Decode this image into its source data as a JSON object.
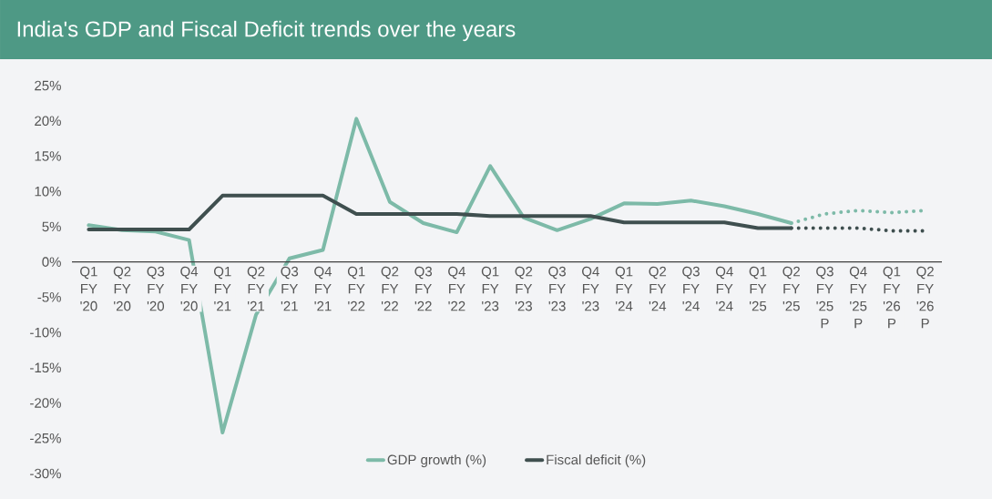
{
  "chart_data": {
    "type": "line",
    "title": "India's GDP and Fiscal Deficit trends over the years",
    "categories": [
      "Q1 FY '20",
      "Q2 FY '20",
      "Q3 FY '20",
      "Q4 FY '20",
      "Q1 FY '21",
      "Q2 FY '21",
      "Q3 FY '21",
      "Q4 FY '21",
      "Q1 FY '22",
      "Q2 FY '22",
      "Q3 FY '22",
      "Q4 FY '22",
      "Q1 FY '23",
      "Q2 FY '23",
      "Q3 FY '23",
      "Q4 FY '23",
      "Q1 FY '24",
      "Q2 FY '24",
      "Q3 FY '24",
      "Q4 FY '24",
      "Q1 FY '25",
      "Q2 FY '25",
      "Q3 FY '25 P",
      "Q4 FY '25 P",
      "Q1 FY '26 P",
      "Q2 FY '26 P"
    ],
    "series": [
      {
        "name": "GDP growth (%)",
        "color": "#7dbaa8",
        "line_style": "solid",
        "values": [
          5.2,
          4.5,
          4.3,
          3.1,
          -24.2,
          -7.5,
          0.5,
          1.7,
          20.3,
          8.5,
          5.5,
          4.2,
          13.6,
          6.3,
          4.5,
          6.1,
          8.3,
          8.2,
          8.7,
          7.9,
          6.8,
          5.5,
          null,
          null,
          null,
          null
        ]
      },
      {
        "color": "#7dbaa8",
        "line_style": "dotted",
        "values": [
          null,
          null,
          null,
          null,
          null,
          null,
          null,
          null,
          null,
          null,
          null,
          null,
          null,
          null,
          null,
          null,
          null,
          null,
          null,
          null,
          null,
          5.5,
          6.8,
          7.3,
          7.0,
          7.3
        ]
      },
      {
        "name": "Fiscal deficit (%)",
        "color": "#3f4f4f",
        "line_style": "solid",
        "values": [
          4.6,
          4.6,
          4.6,
          4.6,
          9.4,
          9.4,
          9.4,
          9.4,
          6.8,
          6.8,
          6.8,
          6.8,
          6.5,
          6.5,
          6.5,
          6.5,
          5.6,
          5.6,
          5.6,
          5.6,
          4.8,
          4.8,
          null,
          null,
          null,
          null
        ]
      },
      {
        "color": "#3f4f4f",
        "line_style": "dotted",
        "values": [
          null,
          null,
          null,
          null,
          null,
          null,
          null,
          null,
          null,
          null,
          null,
          null,
          null,
          null,
          null,
          null,
          null,
          null,
          null,
          null,
          null,
          4.8,
          4.8,
          4.8,
          4.4,
          4.4
        ]
      }
    ],
    "ylim": [
      -30,
      25
    ],
    "yticks": [
      {
        "value": -30,
        "label": "-30%"
      },
      {
        "value": -25,
        "label": "-25%"
      },
      {
        "value": -20,
        "label": "-20%"
      },
      {
        "value": -15,
        "label": "-15%"
      },
      {
        "value": -10,
        "label": "-10%"
      },
      {
        "value": -5,
        "label": "-5%"
      },
      {
        "value": 0,
        "label": "0%"
      },
      {
        "value": 5,
        "label": "5%"
      },
      {
        "value": 10,
        "label": "10%"
      },
      {
        "value": 15,
        "label": "15%"
      },
      {
        "value": 20,
        "label": "20%"
      },
      {
        "value": 25,
        "label": "25%"
      }
    ],
    "grid": false,
    "legend": "bottom",
    "marker": "none"
  }
}
